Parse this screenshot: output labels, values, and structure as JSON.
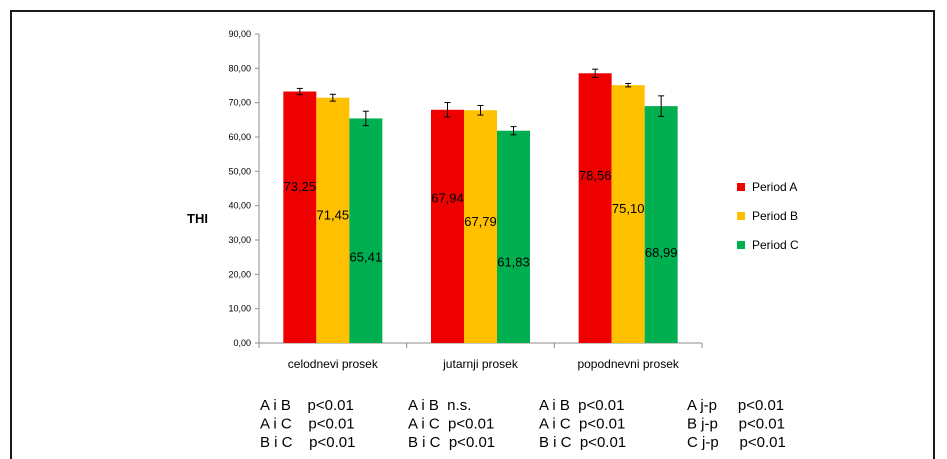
{
  "chart_data": {
    "type": "bar",
    "ylabel": "THI",
    "ylim": [
      0,
      90
    ],
    "ytick_step": 10,
    "ytick_labels": [
      "0,00",
      "10,00",
      "20,00",
      "30,00",
      "40,00",
      "50,00",
      "60,00",
      "70,00",
      "80,00",
      "90,00"
    ],
    "categories": [
      "celodnevi prosek",
      "jutarnji prosek",
      "popodnevni prosek"
    ],
    "series": [
      {
        "name": "Period A",
        "color": "#ee0000",
        "values": [
          73.25,
          67.94,
          78.56
        ],
        "errors": [
          0.9,
          2.1,
          1.2
        ],
        "labels": [
          "73,25",
          "67,94",
          "78,56"
        ]
      },
      {
        "name": "Period B",
        "color": "#ffc000",
        "values": [
          71.45,
          67.79,
          75.1
        ],
        "errors": [
          1.0,
          1.4,
          0.5
        ],
        "labels": [
          "71,45",
          "67,79",
          "75,10"
        ]
      },
      {
        "name": "Period C",
        "color": "#00b050",
        "values": [
          65.41,
          61.83,
          68.99
        ],
        "errors": [
          2.1,
          1.2,
          3.0
        ],
        "labels": [
          "65,41",
          "61,83",
          "68,99"
        ]
      }
    ],
    "legend_position": "right",
    "grid": false
  },
  "stats": {
    "columns": [
      [
        "A i B    p<0.01",
        "A i C    p<0.01",
        "B i C    p<0.01"
      ],
      [
        "A i B  n.s.",
        "A i C  p<0.01",
        "B i C  p<0.01"
      ],
      [
        "A i B  p<0.01",
        "A i C  p<0.01",
        "B i C  p<0.01"
      ],
      [
        "A j-p     p<0.01",
        "B j-p     p<0.01",
        "C j-p     p<0.01"
      ]
    ]
  }
}
